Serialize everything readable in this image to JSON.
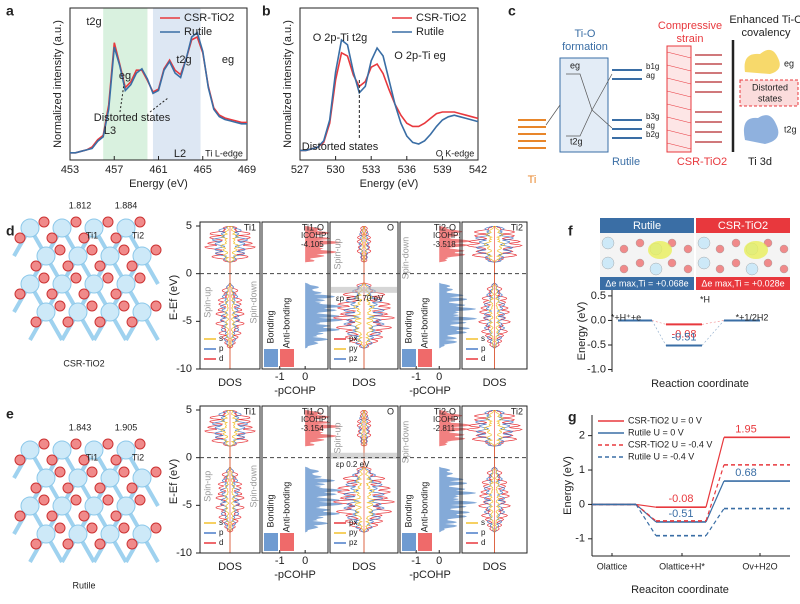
{
  "panel_labels": [
    "a",
    "b",
    "c",
    "d",
    "e",
    "f",
    "g"
  ],
  "chart_data": [
    {
      "type": "line",
      "xlabel": "Energy (eV)",
      "ylabel": "Normalized intensity (a.u.)",
      "x": [
        453,
        453.5,
        454,
        454.5,
        455,
        455.5,
        456,
        456.5,
        457,
        457.5,
        458,
        458.5,
        459,
        459.5,
        460,
        460.5,
        461,
        461.5,
        462,
        462.5,
        463,
        463.5,
        464,
        464.5,
        465,
        465.5,
        466,
        466.5,
        467,
        467.5,
        468,
        468.5,
        469
      ],
      "xlim": [
        453,
        469
      ],
      "xticks": [
        453,
        457,
        461,
        465,
        469
      ],
      "ylim": [
        0,
        10.5
      ],
      "series": [
        {
          "name": "CSR-TiO2",
          "color": "#e8383d",
          "values": [
            0.5,
            0.5,
            0.6,
            0.7,
            0.9,
            1.4,
            1.7,
            3.8,
            8.1,
            6.6,
            5.0,
            5.4,
            6.2,
            6.2,
            5.5,
            4.7,
            4.9,
            6.3,
            6.9,
            6.2,
            5.9,
            7.0,
            8.3,
            8.5,
            7.4,
            5.1,
            3.6,
            3.1,
            2.9,
            2.8,
            2.7,
            2.6,
            2.6
          ]
        },
        {
          "name": "Rutile",
          "color": "#3a6ea5",
          "values": [
            0.5,
            0.5,
            0.6,
            0.7,
            0.8,
            1.3,
            1.6,
            3.5,
            7.8,
            6.5,
            4.8,
            5.2,
            6.0,
            6.3,
            5.6,
            4.6,
            4.8,
            6.2,
            6.8,
            6.0,
            5.7,
            7.0,
            8.5,
            8.8,
            7.5,
            5.0,
            3.5,
            3.0,
            2.8,
            2.7,
            2.6,
            2.5,
            2.5
          ]
        }
      ],
      "regions": [
        {
          "from": 456,
          "to": 460,
          "color": "#d9f1df"
        },
        {
          "from": 460.5,
          "to": 464.8,
          "color": "#dde7f3"
        }
      ],
      "annotations": [
        "t2g",
        "eg",
        "t2g",
        "eg",
        "L3",
        "L2",
        "Distorted states",
        "Ti L-edge"
      ]
    },
    {
      "type": "line",
      "xlabel": "Energy (eV)",
      "ylabel": "Normalized intensity (a.u.)",
      "x": [
        527,
        527.5,
        528,
        528.5,
        529,
        529.5,
        530,
        530.5,
        531,
        531.5,
        532,
        532.5,
        533,
        533.5,
        534,
        534.5,
        535,
        535.5,
        536,
        536.5,
        537,
        537.5,
        538,
        538.5,
        539,
        539.5,
        540,
        540.5,
        541,
        541.5,
        542
      ],
      "xlim": [
        527,
        542
      ],
      "xticks": [
        527,
        530,
        533,
        536,
        539,
        542
      ],
      "ylim": [
        0,
        9.5
      ],
      "series": [
        {
          "name": "CSR-TiO2",
          "color": "#e8383d",
          "values": [
            0.6,
            0.6,
            0.7,
            0.8,
            1.1,
            2.3,
            5.0,
            6.7,
            6.5,
            5.3,
            4.6,
            4.9,
            5.8,
            6.0,
            5.4,
            4.4,
            3.5,
            2.8,
            2.3,
            2.1,
            2.1,
            2.3,
            2.6,
            2.9,
            3.0,
            3.0,
            3.0,
            2.9,
            2.8,
            2.7,
            2.6
          ]
        },
        {
          "name": "Rutile",
          "color": "#3a6ea5",
          "values": [
            0.6,
            0.6,
            0.7,
            0.8,
            1.2,
            2.5,
            5.5,
            7.5,
            7.2,
            5.5,
            4.2,
            4.6,
            6.2,
            7.0,
            6.5,
            5.0,
            3.5,
            2.3,
            1.5,
            1.1,
            1.0,
            1.2,
            1.6,
            2.1,
            2.5,
            2.7,
            2.8,
            2.7,
            2.6,
            2.5,
            2.4
          ]
        }
      ],
      "marker_x": 532,
      "annotations": [
        "O 2p-Ti t2g",
        "O 2p-Ti eg",
        "Distorted states",
        "O K-edge"
      ]
    },
    {
      "type": "levels",
      "ylabel": "Energy (eV)",
      "xlabel": "Reaction coordinate",
      "categories": [
        "*+H⁺+e",
        "*H",
        "*+1/2H2"
      ],
      "ylim": [
        -1.05,
        0.62
      ],
      "yticks": [
        {
          "value": -1,
          "label": "-1.0"
        },
        -0.5,
        {
          "value": 0,
          "label": "0.0"
        },
        0.5
      ],
      "series": [
        {
          "name": "CSR-TiO2",
          "color": "#e8383d",
          "values": [
            0,
            -0.08,
            0
          ],
          "charge_label": "Δe max,Ti = +0.028e"
        },
        {
          "name": "Rutile",
          "color": "#3a6ea5",
          "values": [
            0,
            -0.51,
            0
          ],
          "charge_label": "Δe max,Ti = +0.068e"
        }
      ]
    },
    {
      "type": "step",
      "ylabel": "Energy (eV)",
      "xlabel": "Reaciton coordinate",
      "categories": [
        "Olattice",
        "Olattice+H*",
        "Ov+H2O"
      ],
      "ylim": [
        -1.5,
        2.6
      ],
      "yticks": [
        -1,
        0,
        1,
        2
      ],
      "series": [
        {
          "name": "CSR-TiO2  U = 0 V",
          "color": "#e8383d",
          "dashed": false,
          "values": [
            0,
            -0.08,
            1.95
          ]
        },
        {
          "name": "Rutile  U = 0 V",
          "color": "#3a6ea5",
          "dashed": false,
          "values": [
            0,
            -0.51,
            0.68
          ]
        },
        {
          "name": "CSR-TiO2  U = -0.4 V",
          "color": "#e8383d",
          "dashed": true,
          "values": [
            0,
            -0.48,
            1.15
          ]
        },
        {
          "name": "Rutile  U = -0.4 V",
          "color": "#3a6ea5",
          "dashed": true,
          "values": [
            0,
            -0.91,
            -0.12
          ]
        }
      ]
    },
    {
      "type": "dos",
      "ylabel": "E-Ef (eV)",
      "ylim": [
        -10,
        5
      ],
      "yticks": [
        -10,
        -5,
        0,
        5
      ],
      "cohp_xlim": [
        -1.7,
        0.9
      ],
      "cohp_xticks": [
        -1,
        0
      ],
      "xlabels": [
        "DOS",
        "-pCOHP"
      ],
      "panels": [
        {
          "title": "Ti1"
        },
        {
          "title": "Ti1-O",
          "icohp": -4.105
        },
        {
          "title": "O"
        },
        {
          "title": "Ti2-O",
          "icohp": -3.518
        },
        {
          "title": "Ti2"
        }
      ],
      "icohp_label": "ICOHP:",
      "spin": [
        "Spin-up",
        "Spin-down"
      ],
      "cohp_legend": [
        "Bonding",
        "Anti-bonding"
      ],
      "orbitals": [
        "s",
        "p",
        "d"
      ],
      "o_orbitals": [
        "px",
        "py",
        "pz"
      ],
      "band_center": {
        "label": "εp = -1.70 eV",
        "value": -1.7
      }
    },
    {
      "type": "dos",
      "ylabel": "E-Ef (eV)",
      "ylim": [
        -10,
        5
      ],
      "yticks": [
        -10,
        -5,
        0,
        5
      ],
      "cohp_xlim": [
        -1.7,
        0.9
      ],
      "cohp_xticks": [
        -1,
        0
      ],
      "xlabels": [
        "DOS",
        "-pCOHP"
      ],
      "panels": [
        {
          "title": "Ti1"
        },
        {
          "title": "Ti1-O",
          "icohp": -3.154
        },
        {
          "title": "O"
        },
        {
          "title": "Ti2-O",
          "icohp": -2.811
        },
        {
          "title": "Ti2"
        }
      ],
      "icohp_label": "ICOHP:",
      "spin": [
        "Spin-up",
        "Spin-down"
      ],
      "cohp_legend": [
        "Bonding",
        "Anti-bonding"
      ],
      "orbitals": [
        "s",
        "p",
        "d"
      ],
      "o_orbitals": [
        "px",
        "py",
        "pz"
      ],
      "band_center": {
        "label": "εp  0.2 eV",
        "value": 0.2
      }
    }
  ],
  "diagram_c": {
    "ti_o": [
      "Ti-O",
      "formation"
    ],
    "strain": [
      "Compressive",
      "strain"
    ],
    "covalency": [
      "Enhanced Ti-O",
      "covalency"
    ],
    "eg": "eg",
    "t2g": "t2g",
    "rutile_levels": [
      "b1g",
      "ag",
      "b3g",
      "ag",
      "b2g"
    ],
    "distorted": [
      "Distorted",
      "states"
    ],
    "ti": "Ti",
    "rutile": "Rutile",
    "csr": "CSR-TiO2",
    "ti3d": "Ti 3d"
  },
  "structures": [
    {
      "bonds": [
        "1.812",
        "1.884"
      ],
      "atoms": [
        "Ti1",
        "Ti2"
      ],
      "name": "CSR-TiO2"
    },
    {
      "bonds": [
        "1.843",
        "1.905"
      ],
      "atoms": [
        "Ti1",
        "Ti2"
      ],
      "name": "Rutile"
    }
  ],
  "f_image_label": "*H"
}
